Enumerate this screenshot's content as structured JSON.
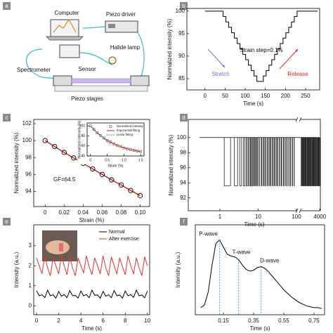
{
  "diagram": {
    "panel": "a",
    "labels": [
      "Computer",
      "Piezo driver",
      "Halide lamp",
      "Spectrometer",
      "Sensor",
      "Piezo stages"
    ]
  },
  "chart_data": [
    {
      "panel": "b",
      "type": "line",
      "xlabel": "Time (s)",
      "ylabel": "Normalized intensity (%)",
      "x": [
        0,
        45,
        45,
        52,
        52,
        59,
        59,
        66,
        66,
        73,
        73,
        80,
        80,
        87,
        87,
        94,
        94,
        101,
        101,
        108,
        108,
        115,
        115,
        122,
        122,
        129,
        129,
        145,
        145,
        152,
        152,
        159,
        159,
        166,
        166,
        173,
        173,
        180,
        180,
        187,
        187,
        194,
        194,
        201,
        201,
        208,
        208,
        215,
        215,
        222,
        222,
        229,
        229,
        280
      ],
      "series": [
        {
          "color": "#000000",
          "values": [
            100,
            100,
            98.8,
            98.8,
            97.6,
            97.6,
            96.4,
            96.4,
            95.2,
            95.2,
            94,
            94,
            92.8,
            92.8,
            91.6,
            91.6,
            90.4,
            90.4,
            89.2,
            89.2,
            88,
            88,
            86.8,
            86.8,
            85.6,
            85.6,
            84.4,
            84.4,
            85.6,
            85.6,
            86.8,
            86.8,
            88,
            88,
            89.2,
            89.2,
            90.4,
            90.4,
            91.6,
            91.6,
            92.8,
            92.8,
            94,
            94,
            95.2,
            95.2,
            96.4,
            96.4,
            97.6,
            97.6,
            98.8,
            98.8,
            100,
            100
          ]
        }
      ],
      "xlim": [
        -45,
        285
      ],
      "ylim": [
        82.5,
        100.6
      ],
      "xticks": [
        0,
        50,
        100,
        150,
        200,
        250
      ],
      "yticks": [
        85,
        90,
        95,
        100
      ],
      "annotations": [
        {
          "text": "Strain step=0.1%",
          "color": "#000000"
        },
        {
          "text": "Stretch",
          "color": "#7b6fd0"
        },
        {
          "text": "Release",
          "color": "#e02828"
        }
      ]
    },
    {
      "panel": "c",
      "type": "scatter",
      "xlabel": "Strain (%)",
      "ylabel": "Normalized intensity (%)",
      "x": [
        0,
        0.01,
        0.02,
        0.03,
        0.04,
        0.05,
        0.06,
        0.07,
        0.08,
        0.09,
        0.1
      ],
      "series": [
        {
          "color": "#000000",
          "fit_color": "#c81414",
          "values": [
            100,
            99.3,
            98.6,
            97.95,
            97.3,
            96.65,
            96.0,
            95.35,
            94.75,
            94.1,
            93.5
          ]
        }
      ],
      "xlim": [
        -0.012,
        0.11
      ],
      "ylim": [
        92.2,
        102.5
      ],
      "xticks": [
        0,
        0.02,
        0.04,
        0.06,
        0.08,
        {
          "value": 0.1,
          "label": "0.10"
        }
      ],
      "yticks": [
        94,
        96,
        98,
        100,
        102
      ],
      "annotations": [
        {
          "text": "GF=64.5"
        }
      ],
      "inset": {
        "type": "scatter",
        "xlabel": "Strain (%)",
        "ylabel": "Normalized intensity (%)",
        "x": [
          0,
          0.1,
          0.2,
          0.3,
          0.4,
          0.5,
          0.6,
          0.7,
          0.8,
          0.9,
          1.0,
          1.1,
          1.2,
          1.3,
          1.4,
          1.5
        ],
        "series": [
          {
            "name": "Normalized intensity",
            "color": "#333333",
            "marker": "square",
            "values": [
              100,
              93,
              86,
              81,
              76,
              71,
              68,
              64,
              61,
              59,
              56,
              54,
              53,
              51,
              50,
              49
            ]
          },
          {
            "name": "Exponential fitting",
            "color": "#d02020",
            "values": [
              100,
              92.7,
              86.3,
              80.6,
              75.7,
              71.3,
              67.5,
              64.1,
              61.2,
              58.6,
              56.4,
              54.4,
              52.6,
              51.1,
              49.7,
              48.5
            ]
          },
          {
            "name": "Linear fitting",
            "color": "#3a9ad9",
            "dash": true,
            "x": [
              0,
              0.6
            ],
            "values": [
              100,
              62
            ]
          }
        ],
        "xlim": [
          -0.1,
          1.6
        ],
        "ylim": [
          40,
          106
        ],
        "xticks": [
          0,
          0.5,
          {
            "value": 1,
            "label": "1.0"
          },
          1.5
        ],
        "yticks": [
          40,
          60,
          80,
          100
        ]
      }
    },
    {
      "panel": "d",
      "type": "pulse",
      "xlabel": "Time (s)",
      "ylabel": "Normalized intensity (%)",
      "color": "#000000",
      "xscale": "log",
      "baseline": 100,
      "x_start": [
        1.3,
        2.4,
        3.3,
        4.1,
        4.9,
        5.6,
        6.3,
        7.0,
        7.8,
        8.6,
        9.4,
        10.5,
        12,
        13.5,
        15,
        17,
        19,
        21,
        23.5,
        26,
        29,
        32,
        36,
        40,
        45,
        50,
        56,
        63,
        70,
        78,
        87,
        200,
        450,
        700,
        950,
        1200,
        1450,
        1700,
        1950,
        2200,
        2450,
        2700,
        2950,
        3200,
        3450,
        3700,
        3950
      ],
      "x_end": [
        1.9,
        2.9,
        3.7,
        4.5,
        5.2,
        5.9,
        6.6,
        7.3,
        8.0,
        8.8,
        9.6,
        10.7,
        12.3,
        13.8,
        15.4,
        17.4,
        19.4,
        21.5,
        24,
        26.6,
        29.6,
        32.6,
        36.7,
        40.8,
        45.9,
        51,
        57,
        64,
        71,
        79,
        88,
        300,
        550,
        800,
        1050,
        1300,
        1550,
        1800,
        2050,
        2300,
        2550,
        2800,
        3050,
        3300,
        3550,
        3800,
        4050
      ],
      "values": [
        93.6,
        93.6,
        93.6,
        93.6,
        93.6,
        93.6,
        93.6,
        93.6,
        93.6,
        93.6,
        93.6,
        93.6,
        93.6,
        93.6,
        93.6,
        93.6,
        93.6,
        93.6,
        93.6,
        93.6,
        93.6,
        93.6,
        93.6,
        93.6,
        93.6,
        93.6,
        93.6,
        93.6,
        93.6,
        93.6,
        93.6,
        93.6,
        93.6,
        93.6,
        93.6,
        93.6,
        93.6,
        93.6,
        93.6,
        93.6,
        93.6,
        93.6,
        93.6,
        93.6,
        93.6,
        93.6,
        93.6
      ],
      "xlim": [
        0.15,
        100
      ],
      "x2lim": [
        100,
        4100
      ],
      "ylim": [
        90.3,
        102.4
      ],
      "xticks": [
        1,
        10,
        100
      ],
      "x2ticks": [
        4000
      ],
      "yticks": [
        92,
        94,
        96,
        98,
        100
      ]
    },
    {
      "panel": "e",
      "type": "line",
      "xlabel": "Time (s)",
      "ylabel": "Intensity (a.u.)",
      "legend": "upper right",
      "x": [
        0,
        0.25,
        0.5,
        0.75,
        1,
        1.25,
        1.5,
        1.75,
        2,
        2.25,
        2.5,
        2.75,
        3,
        3.25,
        3.5,
        3.75,
        4,
        4.25,
        4.5,
        4.75,
        5,
        5.25,
        5.5,
        5.75,
        6,
        6.25,
        6.5,
        6.75,
        7,
        7.25,
        7.5,
        7.75,
        8,
        8.25,
        8.5,
        8.75,
        9,
        9.25,
        9.5,
        9.75,
        10
      ],
      "series": [
        {
          "name": "Normal",
          "color": "#000000",
          "values": [
            0.75,
            0.5,
            0.55,
            0.4,
            0.78,
            0.5,
            0.55,
            0.38,
            0.72,
            0.48,
            0.56,
            0.4,
            0.76,
            0.5,
            0.52,
            0.38,
            0.74,
            0.5,
            0.56,
            0.4,
            0.78,
            0.52,
            0.54,
            0.38,
            0.72,
            0.48,
            0.55,
            0.4,
            0.76,
            0.5,
            0.54,
            0.38,
            0.74,
            0.5,
            0.56,
            0.42,
            0.78,
            0.5,
            0.54,
            0.4,
            0.74
          ]
        },
        {
          "name": "After exercise",
          "color": "#e03030",
          "values": [
            2.4,
            2.0,
            1.6,
            2.5,
            1.9,
            1.5,
            2.4,
            2.0,
            1.6,
            2.5,
            2.0,
            1.55,
            2.45,
            1.9,
            1.5,
            2.4,
            2.0,
            1.65,
            2.5,
            1.95,
            1.55,
            2.4,
            2.0,
            1.6,
            2.5,
            1.9,
            1.5,
            2.45,
            2.0,
            1.6,
            2.4,
            1.95,
            1.55,
            2.5,
            2.0,
            1.6,
            2.4,
            1.9,
            1.5,
            2.45,
            2.0
          ]
        }
      ],
      "xlim": [
        -0.25,
        10.2
      ],
      "ylim": [
        -0.45,
        4.05
      ],
      "xticks": [
        0,
        2,
        4,
        6,
        8,
        10
      ],
      "yticks": [
        0,
        1,
        2,
        3
      ]
    },
    {
      "panel": "f",
      "type": "line",
      "xlabel": "Time (s)",
      "ylabel": "Intensity (a.u.)",
      "x": [
        0,
        0.025,
        0.05,
        0.075,
        0.1,
        0.125,
        0.15,
        0.175,
        0.2,
        0.225,
        0.25,
        0.275,
        0.3,
        0.325,
        0.35,
        0.375,
        0.4,
        0.425,
        0.45,
        0.475,
        0.5,
        0.525,
        0.55,
        0.575,
        0.6,
        0.625,
        0.65,
        0.675,
        0.7,
        0.725,
        0.75,
        0.775,
        0.8
      ],
      "series": [
        {
          "color": "#000000",
          "values": [
            0.12,
            0.15,
            0.3,
            0.6,
            0.84,
            0.88,
            0.8,
            0.72,
            0.7,
            0.69,
            0.66,
            0.6,
            0.55,
            0.53,
            0.54,
            0.57,
            0.58,
            0.56,
            0.52,
            0.47,
            0.42,
            0.37,
            0.32,
            0.28,
            0.24,
            0.21,
            0.18,
            0.16,
            0.14,
            0.13,
            0.12,
            0.12,
            0.11
          ]
        }
      ],
      "xlim": [
        -0.036,
        0.82
      ],
      "ylim": [
        0.04,
        1.05
      ],
      "xticks": [
        0.15,
        0.35,
        0.55,
        0.75
      ],
      "annotations": [
        {
          "text": "P-wave",
          "x": 0.125,
          "color": "#3a8fd8"
        },
        {
          "text": "T-wave",
          "x": 0.25,
          "color": "#3a8fd8"
        },
        {
          "text": "D-wave",
          "x": 0.4,
          "color": "#3a8fd8"
        }
      ]
    }
  ]
}
